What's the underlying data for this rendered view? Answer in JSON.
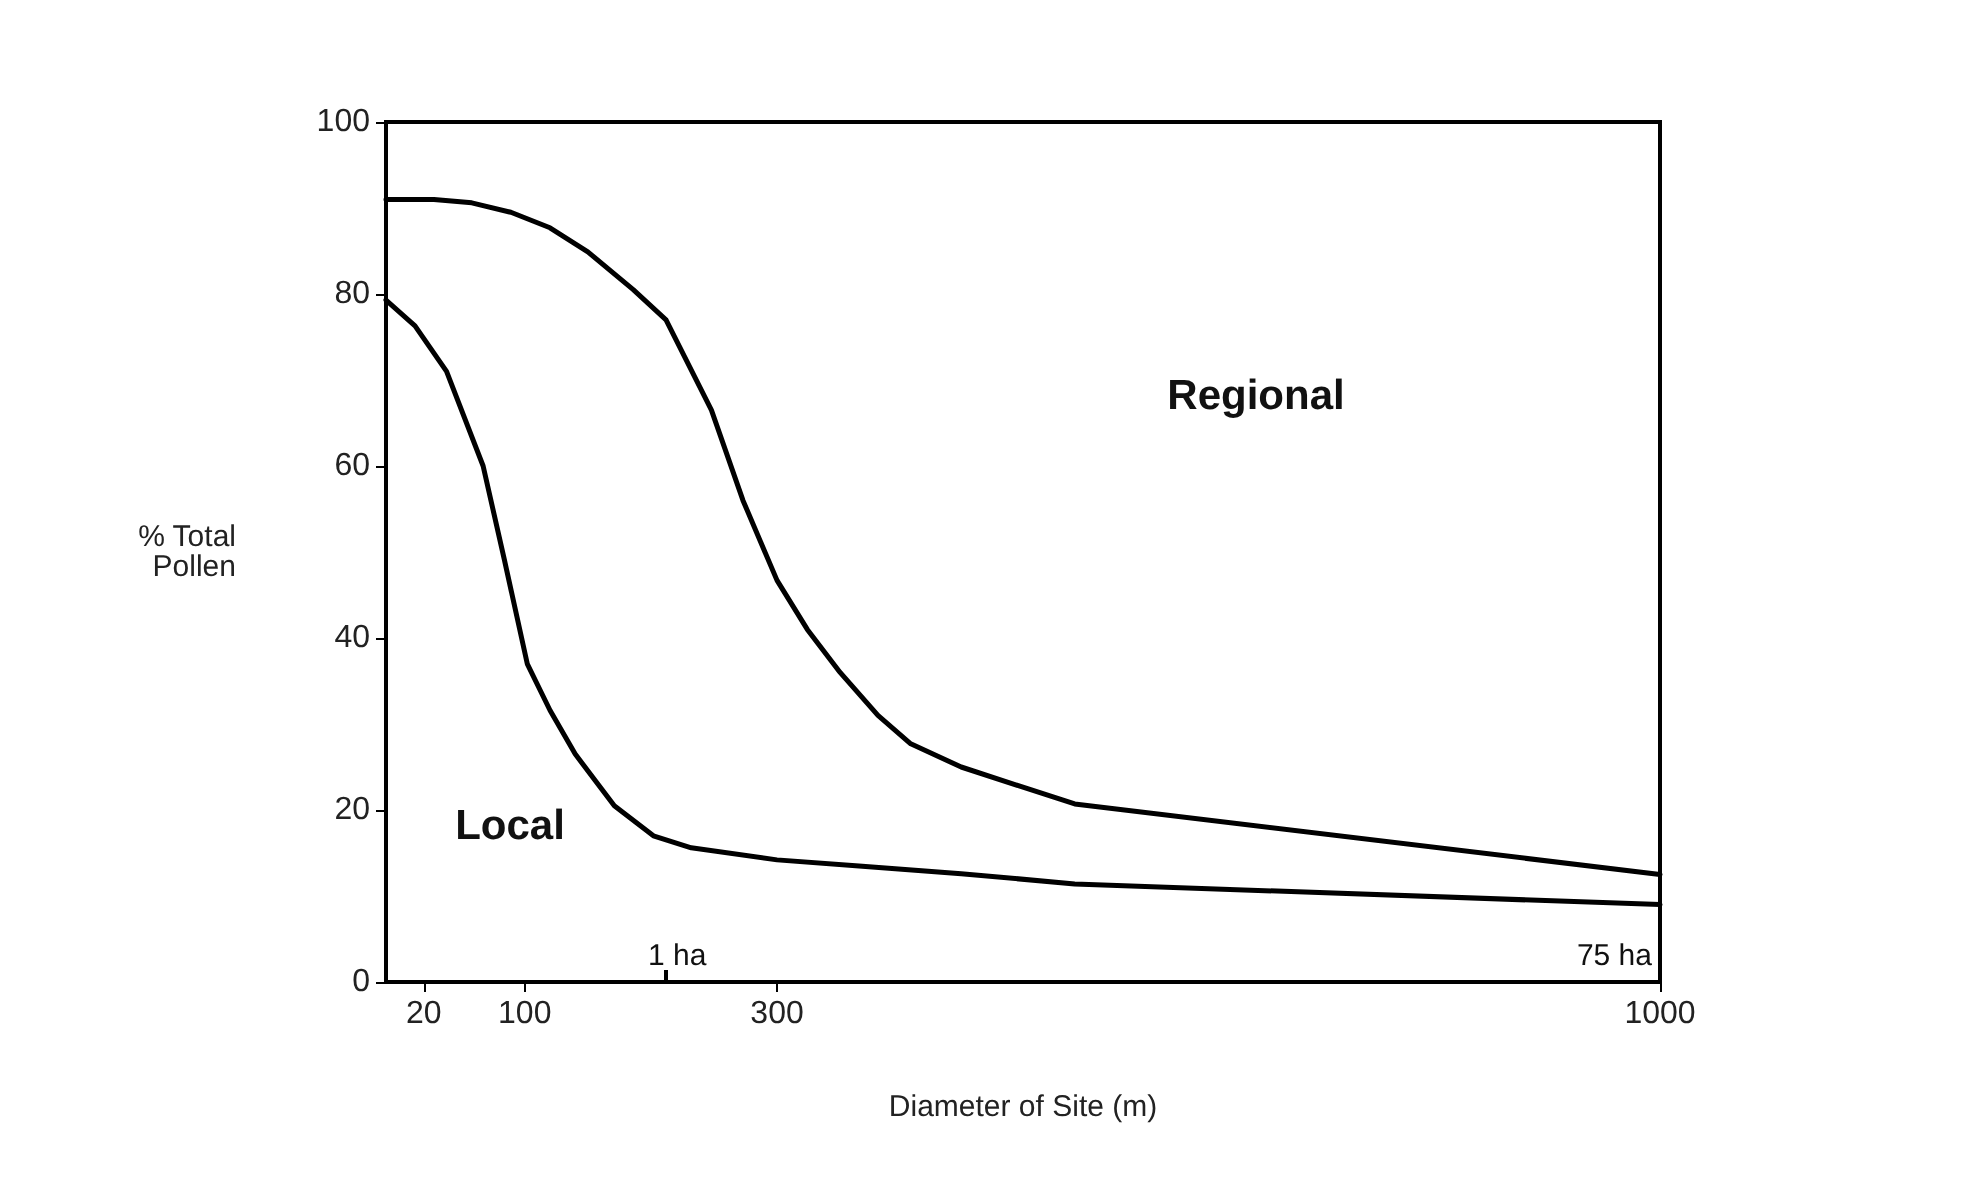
{
  "chart_data": {
    "type": "line",
    "xlabel": "Diameter of Site (m)",
    "ylabel": "% Total\nPollen",
    "xlim": [
      -10,
      1000
    ],
    "ylim": [
      0,
      100
    ],
    "xticks": [
      20,
      100,
      300,
      1000
    ],
    "yticks": [
      0,
      20,
      40,
      60,
      80,
      100
    ],
    "grid": false,
    "marker": "none",
    "line_style": "solid",
    "series": [
      {
        "color": "#000000",
        "x": [
          -10,
          28,
          58,
          89,
          120,
          150,
          186,
          212,
          248,
          273,
          300,
          324,
          350,
          380,
          406,
          446,
          536,
          1000
        ],
        "values": [
          91,
          91,
          90.6,
          89.5,
          87.7,
          84.9,
          80.5,
          77,
          66.5,
          56,
          46.7,
          41,
          36,
          31,
          27.7,
          25,
          20.7,
          12.5
        ]
      },
      {
        "color": "#000000",
        "x": [
          -10,
          13,
          38,
          67,
          84,
          102,
          120,
          140,
          171,
          202,
          232,
          300,
          365,
          446,
          536,
          1000
        ],
        "values": [
          79.3,
          76.3,
          71,
          60,
          49,
          37,
          31.6,
          26.5,
          20.5,
          17,
          15.6,
          14.2,
          13.5,
          12.6,
          11.4,
          9
        ]
      }
    ],
    "annotations": [
      "Regional",
      "Local",
      "1 ha",
      "75 ha"
    ]
  }
}
